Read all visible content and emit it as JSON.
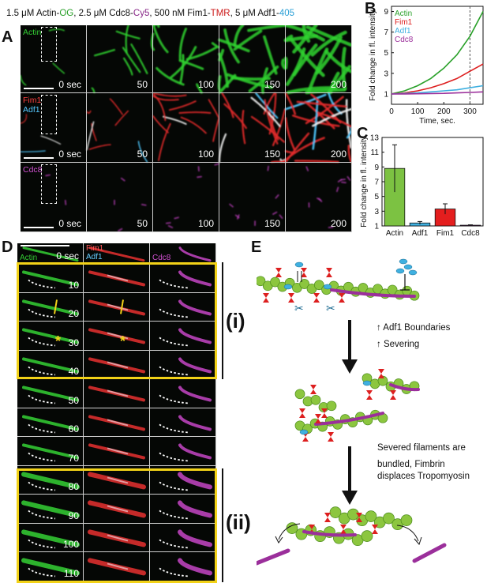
{
  "panels": {
    "a": "A",
    "b": "B",
    "c": "C",
    "d": "D",
    "e": "E"
  },
  "header": {
    "parts": [
      {
        "text": "1.5 μM Actin-",
        "color": "#111111"
      },
      {
        "text": "OG",
        "color": "#2aa12a"
      },
      {
        "text": ", 2.5 μM Cdc8-",
        "color": "#111111"
      },
      {
        "text": "Cy5",
        "color": "#8a2a8a"
      },
      {
        "text": ", 500 nM Fim1-",
        "color": "#111111"
      },
      {
        "text": "TMR",
        "color": "#cc1a1a"
      },
      {
        "text": ", 5 μM Adf1-",
        "color": "#111111"
      },
      {
        "text": "405",
        "color": "#2a9fd6"
      }
    ]
  },
  "panel_a": {
    "times": [
      "0 sec",
      "50",
      "100",
      "150",
      "200"
    ],
    "rows": [
      {
        "labels": [
          {
            "text": "Actin",
            "color": "#33cc33"
          }
        ]
      },
      {
        "labels": [
          {
            "text": "Fim1",
            "color": "#ff4040"
          },
          {
            "text": "Adf1",
            "color": "#55c8ff"
          }
        ]
      },
      {
        "labels": [
          {
            "text": "Cdc8",
            "color": "#d050d0"
          }
        ]
      }
    ]
  },
  "panel_d": {
    "column_labels": [
      [
        {
          "text": "Actin",
          "color": "#33cc33"
        }
      ],
      [
        {
          "text": "Fim1",
          "color": "#ff5a5a"
        },
        {
          "text": "Adf1",
          "color": "#66ccff"
        }
      ],
      [
        {
          "text": "Cdc8",
          "color": "#d050d0"
        }
      ]
    ],
    "times": [
      "0 sec",
      "10",
      "20",
      "30",
      "40",
      "50",
      "60",
      "70",
      "80",
      "90",
      "100",
      "110"
    ],
    "group_labels": [
      "(i)",
      "(ii)"
    ],
    "asterisk": "*"
  },
  "panel_e": {
    "text1_line1": "↑ Adf1 Boundaries",
    "text1_line2": "↑ Severing",
    "text2_line1": "Severed filaments are",
    "text2_line2": "bundled, Fimbrin",
    "text2_line3": "displaces Tropomyosin"
  },
  "colors": {
    "actin": "#2aa12a",
    "fim1": "#dd1f1f",
    "adf1": "#3fb0e0",
    "cdc8": "#9b2f9b",
    "highlight": "#f2d218"
  },
  "chart_data": [
    {
      "type": "line",
      "xlabel": "Time, sec.",
      "ylabel": "Fold change in fl. intensity",
      "xlim": [
        0,
        350
      ],
      "ylim": [
        0,
        9.5
      ],
      "xticks": [
        0,
        100,
        200,
        300
      ],
      "yticks": [
        1,
        3,
        5,
        7,
        9
      ],
      "vline": 300,
      "legend_position": "top-left",
      "x": [
        0,
        50,
        100,
        150,
        200,
        250,
        300,
        350
      ],
      "series": [
        {
          "name": "Actin",
          "color": "#2aa12a",
          "values": [
            1.0,
            1.3,
            1.8,
            2.5,
            3.5,
            4.8,
            6.6,
            9.0
          ]
        },
        {
          "name": "Fim1",
          "color": "#dd1f1f",
          "values": [
            1.0,
            1.1,
            1.3,
            1.6,
            2.0,
            2.5,
            3.2,
            3.9
          ]
        },
        {
          "name": "Adf1",
          "color": "#3fb0e0",
          "values": [
            1.0,
            1.05,
            1.1,
            1.2,
            1.3,
            1.4,
            1.6,
            1.8
          ]
        },
        {
          "name": "Cdc8",
          "color": "#9b2f9b",
          "values": [
            1.0,
            1.0,
            1.02,
            1.04,
            1.06,
            1.1,
            1.15,
            1.2
          ]
        }
      ]
    },
    {
      "type": "bar",
      "ylabel": "Fold change in fl. intensity",
      "ylim": [
        1,
        13
      ],
      "yticks": [
        1,
        3,
        5,
        7,
        9,
        11,
        13
      ],
      "categories": [
        "Actin",
        "Adf1",
        "Fim1",
        "Cdc8"
      ],
      "values": [
        8.8,
        1.4,
        3.3,
        1.1
      ],
      "errors": [
        3.2,
        0.2,
        0.7,
        0.05
      ],
      "colors": [
        "#7cc242",
        "#3fb0e0",
        "#e41e1e",
        "#9b2f9b"
      ]
    }
  ]
}
